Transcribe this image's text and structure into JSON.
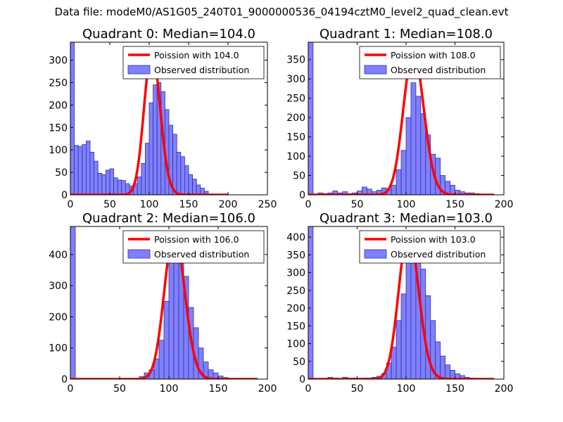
{
  "figure": {
    "suptitle": "Data file: modeM0/AS1G05_240T01_9000000536_04194cztM0_level2_quad_clean.evt"
  },
  "colors": {
    "bar_fill": "#8080ff",
    "bar_edge": "#3030a0",
    "poisson_line": "#ff0000",
    "axis": "#000000"
  },
  "chart_data": [
    {
      "type": "bar",
      "title": "Quadrant 0: Median=104.0",
      "xlim": [
        0,
        250
      ],
      "ylim": [
        0,
        340
      ],
      "xticks": [
        0,
        50,
        100,
        150,
        200,
        250
      ],
      "yticks": [
        0,
        50,
        100,
        150,
        200,
        250,
        300
      ],
      "legend": {
        "position": "top-right",
        "entries": [
          "Poission with 104.0",
          "Observed distribution"
        ]
      },
      "bin_width": 5,
      "bins": [
        [
          0,
          340
        ],
        [
          5,
          110
        ],
        [
          10,
          108
        ],
        [
          15,
          112
        ],
        [
          20,
          120
        ],
        [
          25,
          95
        ],
        [
          30,
          75
        ],
        [
          35,
          48
        ],
        [
          40,
          45
        ],
        [
          45,
          55
        ],
        [
          50,
          58
        ],
        [
          55,
          38
        ],
        [
          60,
          33
        ],
        [
          65,
          32
        ],
        [
          70,
          25
        ],
        [
          75,
          20
        ],
        [
          80,
          25
        ],
        [
          85,
          40
        ],
        [
          90,
          70
        ],
        [
          95,
          115
        ],
        [
          100,
          205
        ],
        [
          105,
          245
        ],
        [
          110,
          250
        ],
        [
          115,
          230
        ],
        [
          120,
          190
        ],
        [
          125,
          155
        ],
        [
          130,
          135
        ],
        [
          135,
          95
        ],
        [
          140,
          85
        ],
        [
          145,
          65
        ],
        [
          150,
          45
        ],
        [
          155,
          35
        ],
        [
          160,
          22
        ],
        [
          165,
          15
        ],
        [
          170,
          8
        ]
      ],
      "poisson_mean": 104,
      "poisson_peak": 320,
      "poisson_range": [
        0,
        200
      ]
    },
    {
      "type": "bar",
      "title": "Quadrant 1: Median=108.0",
      "xlim": [
        0,
        200
      ],
      "ylim": [
        0,
        395
      ],
      "xticks": [
        0,
        50,
        100,
        150,
        200
      ],
      "yticks": [
        0,
        50,
        100,
        150,
        200,
        250,
        300,
        350
      ],
      "legend": {
        "position": "top-right",
        "entries": [
          "Poission with 108.0",
          "Observed distribution"
        ]
      },
      "bin_width": 5,
      "bins": [
        [
          0,
          395
        ],
        [
          10,
          5
        ],
        [
          15,
          3
        ],
        [
          20,
          5
        ],
        [
          25,
          10
        ],
        [
          30,
          5
        ],
        [
          35,
          8
        ],
        [
          40,
          3
        ],
        [
          45,
          5
        ],
        [
          50,
          10
        ],
        [
          55,
          20
        ],
        [
          60,
          15
        ],
        [
          65,
          8
        ],
        [
          70,
          12
        ],
        [
          75,
          18
        ],
        [
          80,
          15
        ],
        [
          85,
          25
        ],
        [
          90,
          65
        ],
        [
          95,
          115
        ],
        [
          100,
          200
        ],
        [
          105,
          290
        ],
        [
          110,
          255
        ],
        [
          115,
          210
        ],
        [
          120,
          155
        ],
        [
          125,
          105
        ],
        [
          130,
          95
        ],
        [
          135,
          50
        ],
        [
          140,
          35
        ],
        [
          145,
          25
        ],
        [
          150,
          12
        ],
        [
          155,
          8
        ],
        [
          160,
          5
        ],
        [
          165,
          5
        ],
        [
          170,
          3
        ]
      ],
      "poisson_mean": 108,
      "poisson_peak": 370,
      "poisson_range": [
        0,
        190
      ]
    },
    {
      "type": "bar",
      "title": "Quadrant 2: Median=106.0",
      "xlim": [
        0,
        200
      ],
      "ylim": [
        0,
        490
      ],
      "xticks": [
        0,
        50,
        100,
        150,
        200
      ],
      "yticks": [
        0,
        100,
        200,
        300,
        400
      ],
      "legend": {
        "position": "top-right",
        "entries": [
          "Poission with 106.0",
          "Observed distribution"
        ]
      },
      "bin_width": 5,
      "bins": [
        [
          0,
          490
        ],
        [
          60,
          2
        ],
        [
          65,
          3
        ],
        [
          70,
          8
        ],
        [
          75,
          20
        ],
        [
          80,
          30
        ],
        [
          85,
          65
        ],
        [
          90,
          125
        ],
        [
          95,
          250
        ],
        [
          100,
          380
        ],
        [
          105,
          440
        ],
        [
          110,
          440
        ],
        [
          115,
          330
        ],
        [
          120,
          230
        ],
        [
          125,
          165
        ],
        [
          130,
          100
        ],
        [
          135,
          55
        ],
        [
          140,
          30
        ],
        [
          145,
          20
        ],
        [
          150,
          10
        ],
        [
          155,
          5
        ],
        [
          160,
          2
        ]
      ],
      "poisson_mean": 106,
      "poisson_peak": 470,
      "poisson_range": [
        0,
        190
      ]
    },
    {
      "type": "bar",
      "title": "Quadrant 3: Median=103.0",
      "xlim": [
        0,
        200
      ],
      "ylim": [
        0,
        430
      ],
      "xticks": [
        0,
        50,
        100,
        150,
        200
      ],
      "yticks": [
        0,
        50,
        100,
        150,
        200,
        250,
        300,
        350,
        400
      ],
      "legend": {
        "position": "top-right",
        "entries": [
          "Poission with 103.0",
          "Observed distribution"
        ]
      },
      "bin_width": 5,
      "bins": [
        [
          0,
          430
        ],
        [
          20,
          5
        ],
        [
          25,
          3
        ],
        [
          35,
          5
        ],
        [
          40,
          3
        ],
        [
          45,
          3
        ],
        [
          55,
          3
        ],
        [
          60,
          3
        ],
        [
          65,
          5
        ],
        [
          70,
          8
        ],
        [
          75,
          15
        ],
        [
          80,
          45
        ],
        [
          85,
          90
        ],
        [
          90,
          165
        ],
        [
          95,
          240
        ],
        [
          100,
          330
        ],
        [
          105,
          400
        ],
        [
          110,
          370
        ],
        [
          115,
          310
        ],
        [
          120,
          235
        ],
        [
          125,
          165
        ],
        [
          130,
          105
        ],
        [
          135,
          65
        ],
        [
          140,
          40
        ],
        [
          145,
          25
        ],
        [
          150,
          15
        ],
        [
          155,
          10
        ],
        [
          160,
          5
        ],
        [
          165,
          3
        ]
      ],
      "poisson_mean": 103,
      "poisson_peak": 415,
      "poisson_range": [
        0,
        190
      ]
    }
  ]
}
